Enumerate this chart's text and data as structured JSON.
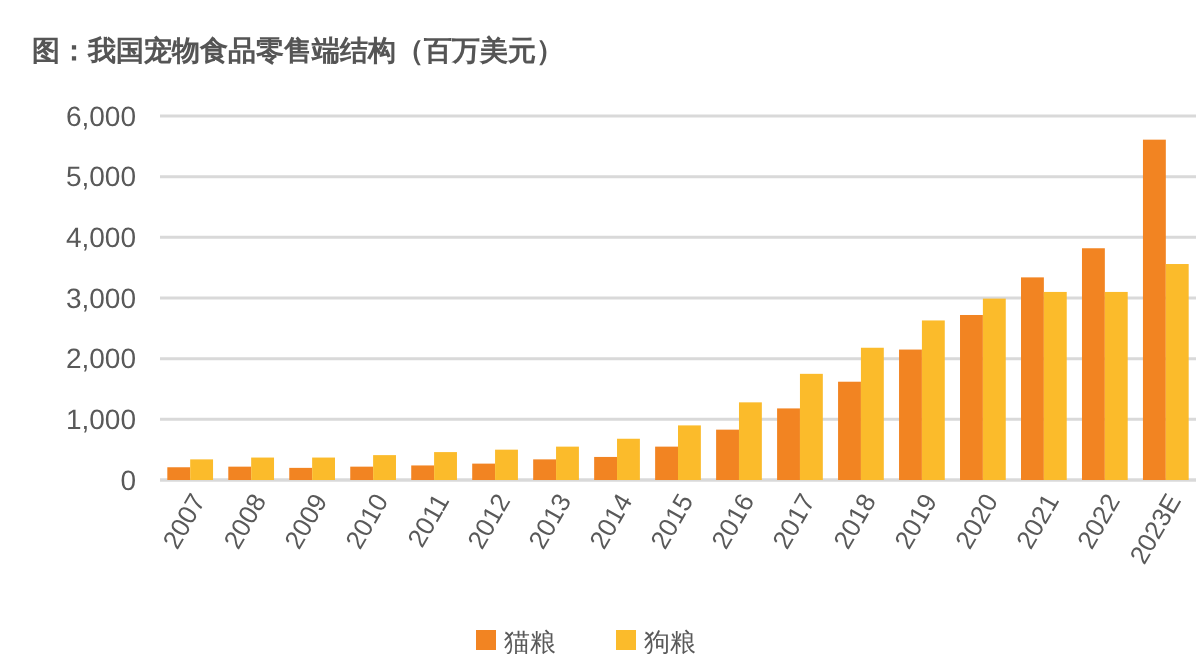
{
  "chart_data": {
    "type": "bar",
    "title": "图：我国宠物食品零售端结构（百万美元）",
    "categories": [
      "2007",
      "2008",
      "2009",
      "2010",
      "2011",
      "2012",
      "2013",
      "2014",
      "2015",
      "2016",
      "2017",
      "2018",
      "2019",
      "2020",
      "2021",
      "2022",
      "2023E"
    ],
    "series": [
      {
        "name": "猫粮",
        "color": "#f28422",
        "values": [
          210,
          220,
          200,
          220,
          240,
          270,
          340,
          380,
          550,
          830,
          1180,
          1620,
          2150,
          2720,
          3340,
          3820,
          5610
        ]
      },
      {
        "name": "狗粮",
        "color": "#fbbb2b",
        "values": [
          340,
          370,
          370,
          410,
          460,
          500,
          550,
          680,
          900,
          1280,
          1750,
          2180,
          2630,
          2990,
          3100,
          3100,
          3560
        ]
      }
    ],
    "ylim": [
      0,
      6000
    ],
    "yticks": [
      {
        "value": 0,
        "label": "0"
      },
      {
        "value": 1000,
        "label": "1,000"
      },
      {
        "value": 2000,
        "label": "2,000"
      },
      {
        "value": 3000,
        "label": "3,000"
      },
      {
        "value": 4000,
        "label": "4,000"
      },
      {
        "value": 5000,
        "label": "5,000"
      },
      {
        "value": 6000,
        "label": "6,000"
      }
    ],
    "grid": "y",
    "legend": "bottom"
  }
}
